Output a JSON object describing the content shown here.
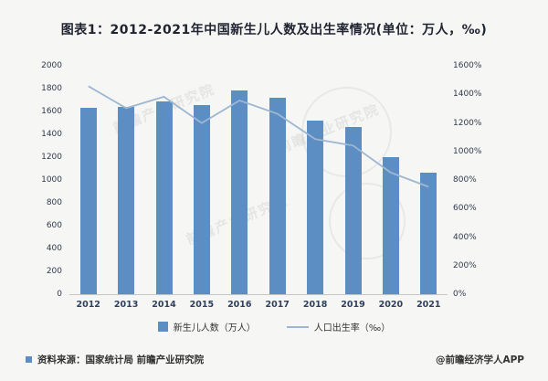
{
  "page": {
    "title": "图表1：2012-2021年中国新生儿人数及出生率情况(单位：万人，‰)",
    "source_label": "资料来源：国家统计局 前瞻产业研究院",
    "brand_label": "@前瞻经济学人APP",
    "watermark": "前瞻产业研究院"
  },
  "chart_data": {
    "type": "bar",
    "subtype": "bar+line dual axis",
    "title": "图表1：2012-2021年中国新生儿人数及出生率情况(单位：万人，‰)",
    "categories": [
      "2012",
      "2013",
      "2014",
      "2015",
      "2016",
      "2017",
      "2018",
      "2019",
      "2020",
      "2021"
    ],
    "series": [
      {
        "name": "新生儿人数（万人）",
        "type": "bar",
        "axis": "left",
        "values": [
          1635,
          1640,
          1687,
          1655,
          1786,
          1723,
          1523,
          1465,
          1200,
          1062
        ]
      },
      {
        "name": "人口出生率（‰）",
        "type": "line",
        "axis": "right",
        "values": [
          14.57,
          13.03,
          13.83,
          11.99,
          13.57,
          12.64,
          10.86,
          10.41,
          8.52,
          7.52
        ]
      }
    ],
    "left_axis": {
      "min": 0,
      "max": 2000,
      "step": 200,
      "ticks": [
        "2000",
        "1800",
        "1600",
        "1400",
        "1200",
        "1000",
        "800",
        "600",
        "400",
        "200",
        "0"
      ]
    },
    "right_axis": {
      "min": 0,
      "max": 16,
      "step": 2,
      "ticks": [
        "1600%",
        "1400%",
        "1200%",
        "1000%",
        "800%",
        "600%",
        "400%",
        "200%",
        "0%"
      ]
    },
    "legend": [
      "新生儿人数（万人）",
      "人口出生率（‰）"
    ],
    "legend_position": "bottom",
    "grid": false,
    "colors": {
      "bar": "#5d8ec3",
      "line": "#9db7d2"
    }
  }
}
